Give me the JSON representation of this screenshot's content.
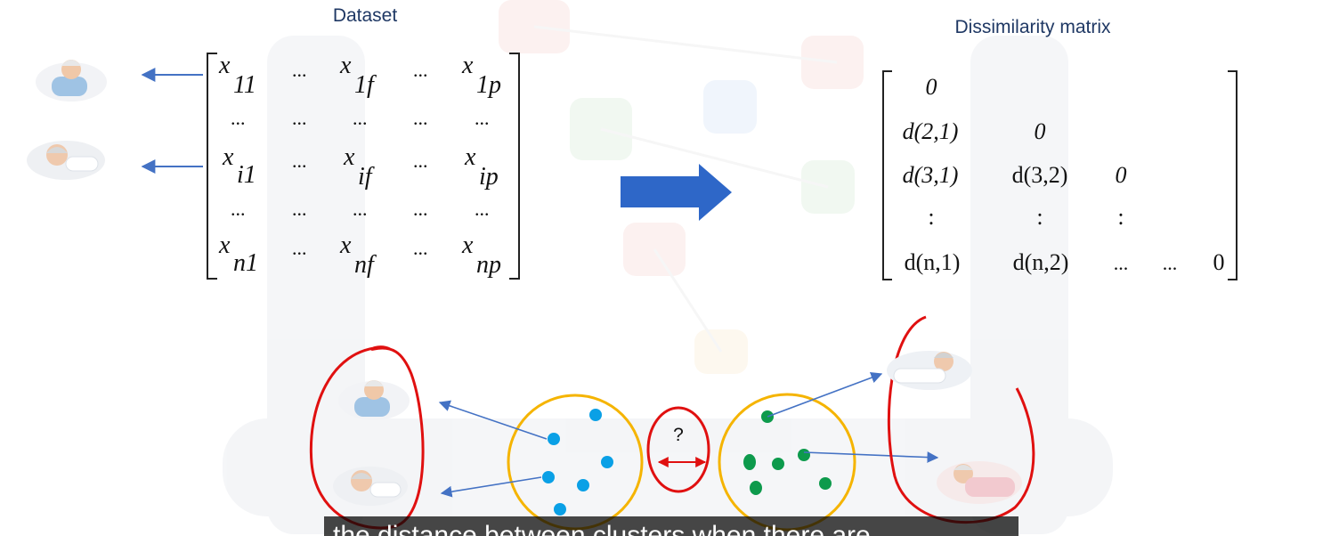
{
  "dataset": {
    "title": "Dataset",
    "matrix": [
      [
        "x",
        "11",
        "...",
        "x",
        "1f",
        "...",
        "x",
        "1p"
      ],
      [
        "...",
        "...",
        "...",
        "...",
        "..."
      ],
      [
        "x",
        "i1",
        "...",
        "x",
        "if",
        "...",
        "x",
        "ip"
      ],
      [
        "...",
        "...",
        "...",
        "...",
        "..."
      ],
      [
        "x",
        "n1",
        "...",
        "x",
        "nf",
        "...",
        "x",
        "np"
      ]
    ]
  },
  "dissimilarity": {
    "title": "Dissimilarity matrix",
    "rows": [
      [
        "0"
      ],
      [
        "d(2,1)",
        "0"
      ],
      [
        "d(3,1)",
        "d(3,2)",
        "0"
      ],
      [
        ":",
        ":",
        ":"
      ],
      [
        "d(n,1)",
        "d(n,2)",
        "...",
        "...",
        "0"
      ]
    ]
  },
  "clusters": {
    "question_mark": "?"
  },
  "caption": {
    "text": "the distance between clusters when there are"
  },
  "colors": {
    "title_text": "#1f3864",
    "arrow_blue": "#4472c4",
    "big_arrow": "#2e67c8",
    "cluster_ring": "#f5b400",
    "blue_dot": "#0aa0e6",
    "green_dot": "#0d9a4c",
    "red_ink": "#e01010"
  },
  "icons": [
    "patient-elderly-woman-icon",
    "patient-elderly-man-icon",
    "patient-lying-icon",
    "patient-reclining-icon"
  ]
}
